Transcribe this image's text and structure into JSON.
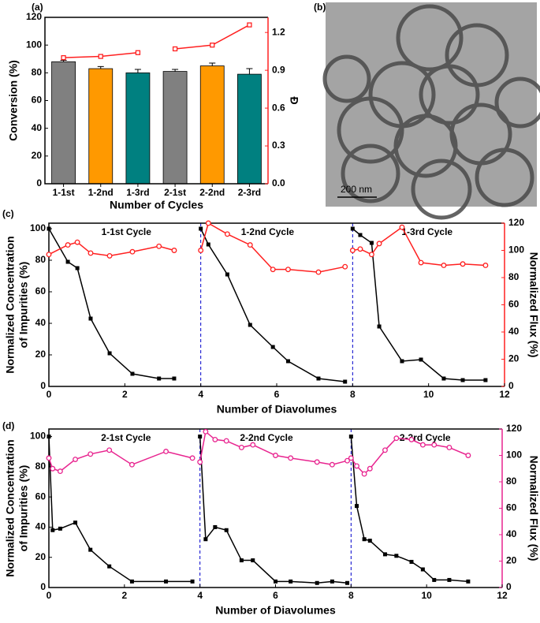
{
  "chart_data": [
    {
      "type": "bar",
      "panel_label": "(a)",
      "ylabel": "Conversion (%)",
      "xlabel": "Number of Cycles",
      "y2label": "Đ",
      "categories": [
        "1-1st",
        "1-2nd",
        "1-3rd",
        "2-1st",
        "2-2nd",
        "2-3rd"
      ],
      "values": [
        88,
        83,
        80,
        81,
        85,
        79
      ],
      "errors": [
        1,
        1.5,
        2.5,
        1.5,
        2,
        4
      ],
      "colors": [
        "#808080",
        "#ff9900",
        "#008080",
        "#808080",
        "#ff9900",
        "#008080"
      ],
      "ylim": [
        0,
        120
      ],
      "yticks": [
        0,
        20,
        40,
        60,
        80,
        100,
        120
      ],
      "y2lim": [
        0,
        1.32
      ],
      "y2ticks": [
        {
          "value": 0,
          "label": "0.0"
        },
        0.3,
        0.6,
        0.9,
        1.2
      ],
      "series": [
        {
          "color": "#ff2020",
          "marker": "open-square",
          "axis": "y2",
          "values": [
            1.0,
            1.01,
            1.04,
            null,
            null,
            null
          ]
        },
        {
          "color": "#ff2020",
          "marker": "open-square",
          "axis": "y2",
          "values": [
            null,
            null,
            null,
            1.07,
            1.1,
            1.26
          ]
        }
      ]
    },
    {
      "type": "line",
      "panel_label": "(c)",
      "ylabel": [
        "Normalized Concentration",
        "of Impurities (%)"
      ],
      "y2label": "Normalized Flux (%)",
      "xlabel": "Number of Diavolumes",
      "annotations": [
        "1-1st Cycle",
        "1-2nd Cycle",
        "1-3rd Cycle"
      ],
      "xlim": [
        0,
        12
      ],
      "xticks": [
        0,
        2,
        4,
        6,
        8,
        10,
        12
      ],
      "ylim": [
        0,
        103.5
      ],
      "yticks": [
        0,
        20,
        40,
        60,
        80,
        100
      ],
      "y2lim": [
        0,
        120
      ],
      "y2ticks": [
        0,
        20,
        40,
        60,
        80,
        100,
        120
      ],
      "vlines": [
        4,
        8
      ],
      "series": [
        {
          "color": "#000000",
          "marker": "square",
          "axis": "y",
          "x": [
            0,
            0.5,
            0.75,
            1.1,
            1.6,
            2.2,
            2.9,
            3.3
          ],
          "values": [
            100,
            79,
            75,
            43,
            21,
            8,
            5,
            5
          ]
        },
        {
          "color": "#ff2020",
          "marker": "circle",
          "axis": "y2",
          "x": [
            0,
            0.5,
            0.75,
            1.1,
            1.6,
            2.2,
            2.9,
            3.3
          ],
          "values": [
            97,
            104,
            106,
            98,
            96,
            99,
            103,
            100
          ]
        },
        {
          "color": "#000000",
          "marker": "square",
          "axis": "y",
          "x": [
            4,
            4.2,
            4.7,
            5.3,
            5.9,
            6.3,
            7.1,
            7.8
          ],
          "values": [
            100,
            90,
            71,
            39,
            25,
            16,
            5,
            3
          ]
        },
        {
          "color": "#ff2020",
          "marker": "circle",
          "axis": "y2",
          "x": [
            4,
            4.2,
            4.7,
            5.3,
            5.9,
            6.3,
            7.1,
            7.8
          ],
          "values": [
            100,
            120,
            112,
            104,
            86,
            86,
            84,
            88
          ]
        },
        {
          "color": "#000000",
          "marker": "square",
          "axis": "y",
          "x": [
            8,
            8.2,
            8.5,
            8.7,
            9.3,
            9.8,
            10.4,
            10.9,
            11.5
          ],
          "values": [
            100,
            96,
            91,
            38,
            16,
            17,
            5,
            4,
            4
          ]
        },
        {
          "color": "#ff2020",
          "marker": "circle",
          "axis": "y2",
          "x": [
            8,
            8.2,
            8.5,
            8.7,
            9.3,
            9.8,
            10.4,
            10.9,
            11.5
          ],
          "values": [
            100,
            101,
            97,
            105,
            117,
            91,
            89,
            90,
            89
          ]
        }
      ]
    },
    {
      "type": "line",
      "panel_label": "(d)",
      "ylabel": [
        "Normalized Concentration",
        "of Impurities (%)"
      ],
      "y2label": "Normalized Flux (%)",
      "xlabel": "Number of Diavolumes",
      "annotations": [
        "2-1st Cycle",
        "2-2nd Cycle",
        "2-3rd Cycle"
      ],
      "xlim": [
        0,
        12
      ],
      "xticks": [
        0,
        2,
        4,
        6,
        8,
        10,
        12
      ],
      "ylim": [
        0,
        105
      ],
      "yticks": [
        0,
        20,
        40,
        60,
        80,
        100
      ],
      "y2lim": [
        0,
        120
      ],
      "y2ticks": [
        0,
        20,
        40,
        60,
        80,
        100,
        120
      ],
      "vlines": [
        4,
        8
      ],
      "series": [
        {
          "color": "#000000",
          "marker": "square",
          "axis": "y",
          "x": [
            0,
            0.1,
            0.3,
            0.7,
            1.1,
            1.6,
            2.2,
            3.1,
            3.8
          ],
          "values": [
            100,
            38,
            39,
            43,
            25,
            14,
            4,
            4,
            4
          ]
        },
        {
          "color": "#e8248f",
          "marker": "circle",
          "axis": "y2",
          "x": [
            0,
            0.1,
            0.3,
            0.7,
            1.1,
            1.6,
            2.2,
            3.1,
            3.8
          ],
          "values": [
            98,
            90,
            88,
            97,
            101,
            104,
            93,
            103,
            98
          ]
        },
        {
          "color": "#000000",
          "marker": "square",
          "axis": "y",
          "x": [
            4,
            4.15,
            4.4,
            4.7,
            5.1,
            5.4,
            6,
            6.4,
            7.1,
            7.5,
            7.9
          ],
          "values": [
            100,
            32,
            40,
            38,
            18,
            18,
            4,
            4,
            3,
            4,
            3
          ]
        },
        {
          "color": "#e8248f",
          "marker": "circle",
          "axis": "y2",
          "x": [
            4,
            4.15,
            4.4,
            4.7,
            5.1,
            5.4,
            6,
            6.4,
            7.1,
            7.5,
            7.9
          ],
          "values": [
            95,
            118,
            112,
            111,
            106,
            108,
            100,
            98,
            95,
            93,
            96
          ]
        },
        {
          "color": "#000000",
          "marker": "square",
          "axis": "y",
          "x": [
            8,
            8.15,
            8.35,
            8.5,
            8.9,
            9.2,
            9.6,
            9.9,
            10.2,
            10.6,
            11.1
          ],
          "values": [
            100,
            54,
            32,
            31,
            22,
            21,
            17,
            12,
            5,
            5,
            4
          ]
        },
        {
          "color": "#e8248f",
          "marker": "circle",
          "axis": "y2",
          "x": [
            8,
            8.15,
            8.35,
            8.5,
            8.9,
            9.2,
            9.6,
            9.9,
            10.2,
            10.6,
            11.1
          ],
          "values": [
            98,
            92,
            86,
            90,
            104,
            113,
            112,
            108,
            108,
            106,
            100
          ]
        }
      ]
    }
  ],
  "image": {
    "label": "(b)",
    "scale_bar": "200 nm"
  }
}
